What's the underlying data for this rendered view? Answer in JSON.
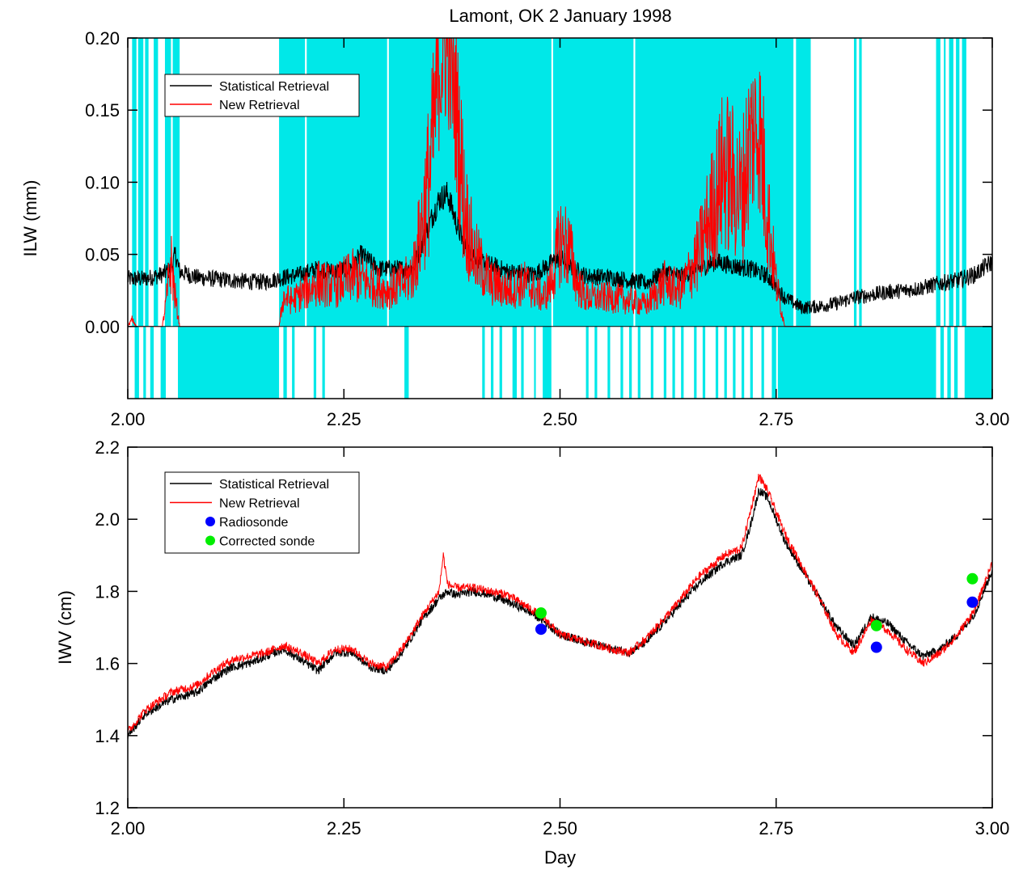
{
  "title": "Lamont, OK   2 January 1998",
  "colors": {
    "cloud_shading": "#00e8e8",
    "statistical": "#000000",
    "new": "#ff0000",
    "radiosonde": "#0000ff",
    "corrected": "#00ee00"
  },
  "chart_data": [
    {
      "type": "line",
      "title": "Lamont, OK   2 January 1998",
      "ylabel": "ILW (mm)",
      "xlabel": "",
      "xlim": [
        2.0,
        3.0
      ],
      "ylim": [
        -0.05,
        0.2
      ],
      "xticks": [
        "2.00",
        "2.25",
        "2.50",
        "2.75",
        "3.00"
      ],
      "yticks": [
        "0.00",
        "0.05",
        "0.10",
        "0.15",
        "0.20"
      ],
      "legend": {
        "position": "top-left",
        "entries": [
          "Statistical Retrieval",
          "New Retrieval"
        ]
      },
      "cloud_intervals_upper": [
        [
          2.005,
          2.01
        ],
        [
          2.012,
          2.018
        ],
        [
          2.02,
          2.024
        ],
        [
          2.03,
          2.035
        ],
        [
          2.043,
          2.05
        ],
        [
          2.052,
          2.06
        ],
        [
          2.175,
          2.205
        ],
        [
          2.207,
          2.3
        ],
        [
          2.302,
          2.49
        ],
        [
          2.492,
          2.585
        ],
        [
          2.587,
          2.77
        ],
        [
          2.773,
          2.79
        ],
        [
          2.84,
          2.843
        ],
        [
          2.846,
          2.849
        ],
        [
          2.935,
          2.94
        ],
        [
          2.944,
          2.946
        ],
        [
          2.95,
          2.955
        ],
        [
          2.958,
          2.962
        ],
        [
          2.965,
          2.97
        ]
      ],
      "cloud_intervals_lower": [
        [
          2.008,
          2.013
        ],
        [
          2.018,
          2.021
        ],
        [
          2.026,
          2.03
        ],
        [
          2.038,
          2.044
        ],
        [
          2.058,
          2.175
        ],
        [
          2.18,
          2.184
        ],
        [
          2.19,
          2.193
        ],
        [
          2.215,
          2.218
        ],
        [
          2.225,
          2.228
        ],
        [
          2.32,
          2.325
        ],
        [
          2.41,
          2.413
        ],
        [
          2.42,
          2.423
        ],
        [
          2.43,
          2.433
        ],
        [
          2.445,
          2.45
        ],
        [
          2.455,
          2.458
        ],
        [
          2.47,
          2.472
        ],
        [
          2.48,
          2.49
        ],
        [
          2.53,
          2.533
        ],
        [
          2.54,
          2.543
        ],
        [
          2.555,
          2.558
        ],
        [
          2.57,
          2.573
        ],
        [
          2.58,
          2.583
        ],
        [
          2.59,
          2.593
        ],
        [
          2.605,
          2.608
        ],
        [
          2.62,
          2.623
        ],
        [
          2.63,
          2.633
        ],
        [
          2.64,
          2.643
        ],
        [
          2.655,
          2.658
        ],
        [
          2.665,
          2.668
        ],
        [
          2.68,
          2.683
        ],
        [
          2.69,
          2.693
        ],
        [
          2.7,
          2.703
        ],
        [
          2.71,
          2.713
        ],
        [
          2.72,
          2.723
        ],
        [
          2.733,
          2.736
        ],
        [
          2.745,
          2.75
        ],
        [
          2.752,
          2.935
        ],
        [
          2.94,
          2.944
        ],
        [
          2.948,
          2.952
        ],
        [
          2.956,
          2.96
        ],
        [
          2.968,
          3.0
        ]
      ],
      "series": [
        {
          "name": "Statistical Retrieval",
          "x": [
            2.0,
            2.02,
            2.04,
            2.05,
            2.055,
            2.06,
            2.08,
            2.1,
            2.12,
            2.14,
            2.16,
            2.18,
            2.2,
            2.22,
            2.24,
            2.26,
            2.27,
            2.29,
            2.31,
            2.33,
            2.345,
            2.36,
            2.37,
            2.38,
            2.39,
            2.41,
            2.44,
            2.47,
            2.5,
            2.51,
            2.53,
            2.56,
            2.58,
            2.6,
            2.62,
            2.64,
            2.66,
            2.68,
            2.7,
            2.72,
            2.74,
            2.76,
            2.78,
            2.8,
            2.82,
            2.84,
            2.86,
            2.88,
            2.9,
            2.92,
            2.94,
            2.96,
            2.98,
            3.0
          ],
          "y": [
            0.033,
            0.033,
            0.036,
            0.04,
            0.05,
            0.038,
            0.034,
            0.033,
            0.032,
            0.031,
            0.031,
            0.034,
            0.036,
            0.04,
            0.038,
            0.042,
            0.05,
            0.04,
            0.04,
            0.04,
            0.065,
            0.088,
            0.092,
            0.072,
            0.055,
            0.045,
            0.038,
            0.036,
            0.048,
            0.042,
            0.035,
            0.034,
            0.032,
            0.03,
            0.038,
            0.035,
            0.04,
            0.045,
            0.042,
            0.04,
            0.035,
            0.02,
            0.013,
            0.014,
            0.016,
            0.02,
            0.022,
            0.024,
            0.025,
            0.027,
            0.03,
            0.032,
            0.036,
            0.045
          ]
        },
        {
          "name": "New Retrieval",
          "x": [
            2.0,
            2.005,
            2.01,
            2.04,
            2.045,
            2.05,
            2.055,
            2.06,
            2.175,
            2.18,
            2.19,
            2.2,
            2.22,
            2.24,
            2.26,
            2.28,
            2.3,
            2.32,
            2.33,
            2.34,
            2.35,
            2.36,
            2.37,
            2.38,
            2.39,
            2.4,
            2.42,
            2.44,
            2.46,
            2.48,
            2.49,
            2.5,
            2.51,
            2.52,
            2.53,
            2.56,
            2.58,
            2.6,
            2.62,
            2.64,
            2.66,
            2.68,
            2.69,
            2.7,
            2.71,
            2.72,
            2.73,
            2.74,
            2.75,
            2.76,
            3.0
          ],
          "y": [
            0.0,
            0.005,
            0.0,
            0.0,
            0.02,
            0.045,
            0.02,
            0.0,
            0.0,
            0.02,
            0.018,
            0.022,
            0.03,
            0.028,
            0.035,
            0.03,
            0.025,
            0.03,
            0.038,
            0.07,
            0.11,
            0.18,
            0.2,
            0.15,
            0.08,
            0.05,
            0.03,
            0.025,
            0.03,
            0.02,
            0.03,
            0.06,
            0.055,
            0.03,
            0.02,
            0.02,
            0.018,
            0.015,
            0.03,
            0.025,
            0.05,
            0.09,
            0.11,
            0.1,
            0.09,
            0.13,
            0.14,
            0.08,
            0.03,
            0.0,
            0.0
          ]
        }
      ]
    },
    {
      "type": "line",
      "title": "",
      "ylabel": "IWV (cm)",
      "xlabel": "Day",
      "xlim": [
        2.0,
        3.0
      ],
      "ylim": [
        1.2,
        2.2
      ],
      "xticks": [
        "2.00",
        "2.25",
        "2.50",
        "2.75",
        "3.00"
      ],
      "yticks": [
        "1.2",
        "1.4",
        "1.6",
        "1.8",
        "2.0",
        "2.2"
      ],
      "legend": {
        "position": "top-left",
        "entries": [
          "Statistical Retrieval",
          "New Retrieval",
          "Radiosonde",
          "Corrected sonde"
        ]
      },
      "series": [
        {
          "name": "Statistical Retrieval",
          "x": [
            2.0,
            2.02,
            2.05,
            2.08,
            2.1,
            2.12,
            2.14,
            2.16,
            2.18,
            2.2,
            2.22,
            2.24,
            2.26,
            2.28,
            2.3,
            2.32,
            2.34,
            2.36,
            2.37,
            2.38,
            2.4,
            2.42,
            2.44,
            2.46,
            2.48,
            2.5,
            2.53,
            2.56,
            2.58,
            2.6,
            2.63,
            2.66,
            2.69,
            2.71,
            2.72,
            2.73,
            2.74,
            2.76,
            2.78,
            2.8,
            2.82,
            2.84,
            2.86,
            2.88,
            2.9,
            2.92,
            2.94,
            2.96,
            2.98,
            3.0
          ],
          "y": [
            1.4,
            1.46,
            1.5,
            1.52,
            1.56,
            1.59,
            1.6,
            1.62,
            1.64,
            1.61,
            1.58,
            1.63,
            1.63,
            1.59,
            1.58,
            1.64,
            1.72,
            1.78,
            1.8,
            1.79,
            1.8,
            1.79,
            1.77,
            1.75,
            1.72,
            1.68,
            1.66,
            1.64,
            1.63,
            1.66,
            1.74,
            1.82,
            1.88,
            1.9,
            1.98,
            2.08,
            2.06,
            1.94,
            1.86,
            1.78,
            1.7,
            1.65,
            1.73,
            1.71,
            1.66,
            1.62,
            1.64,
            1.68,
            1.74,
            1.86
          ]
        },
        {
          "name": "New Retrieval",
          "x": [
            2.0,
            2.02,
            2.05,
            2.08,
            2.1,
            2.12,
            2.14,
            2.16,
            2.18,
            2.2,
            2.22,
            2.24,
            2.26,
            2.28,
            2.3,
            2.32,
            2.34,
            2.36,
            2.365,
            2.37,
            2.38,
            2.4,
            2.42,
            2.44,
            2.46,
            2.48,
            2.5,
            2.53,
            2.56,
            2.58,
            2.6,
            2.63,
            2.66,
            2.69,
            2.71,
            2.72,
            2.73,
            2.74,
            2.76,
            2.78,
            2.8,
            2.82,
            2.84,
            2.86,
            2.88,
            2.9,
            2.92,
            2.94,
            2.96,
            2.98,
            3.0
          ],
          "y": [
            1.41,
            1.47,
            1.52,
            1.54,
            1.58,
            1.61,
            1.62,
            1.63,
            1.65,
            1.63,
            1.6,
            1.64,
            1.64,
            1.6,
            1.59,
            1.65,
            1.73,
            1.8,
            1.9,
            1.82,
            1.81,
            1.81,
            1.8,
            1.79,
            1.76,
            1.73,
            1.68,
            1.66,
            1.64,
            1.63,
            1.67,
            1.75,
            1.84,
            1.9,
            1.92,
            2.02,
            2.12,
            2.08,
            1.96,
            1.87,
            1.78,
            1.68,
            1.63,
            1.72,
            1.69,
            1.64,
            1.6,
            1.63,
            1.68,
            1.75,
            1.88
          ]
        },
        {
          "name": "Radiosonde",
          "marker": "dot",
          "x": [
            2.478,
            2.866,
            2.977
          ],
          "y": [
            1.695,
            1.645,
            1.77
          ]
        },
        {
          "name": "Corrected sonde",
          "marker": "dot",
          "x": [
            2.478,
            2.866,
            2.977
          ],
          "y": [
            1.74,
            1.705,
            1.835
          ]
        }
      ]
    }
  ]
}
